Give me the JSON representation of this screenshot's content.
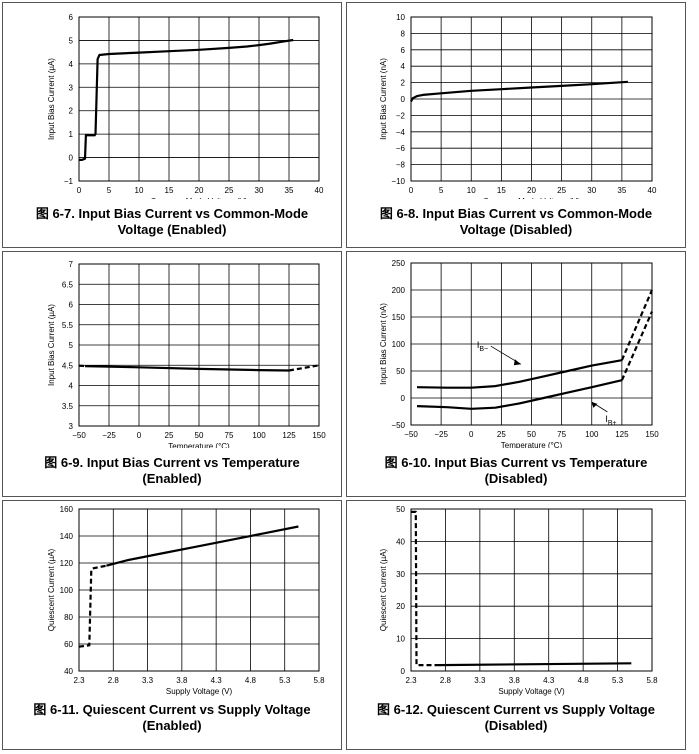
{
  "chart_data": [
    {
      "id": "6-7",
      "type": "line",
      "caption_prefix": "图",
      "caption_number": "6-7.",
      "caption_line1": "Input Bias Current vs Common-Mode",
      "caption_line2": "Voltage (Enabled)",
      "xlabel": "Common-Mode Voltage (V)",
      "ylabel": "Input Bias Current (µA)",
      "xlim": [
        0,
        40
      ],
      "ylim": [
        -1,
        6
      ],
      "x_ticks": [
        "0",
        "5",
        "10",
        "15",
        "20",
        "25",
        "30",
        "35",
        "40"
      ],
      "y_ticks": [
        "−1",
        "0",
        "1",
        "2",
        "3",
        "4",
        "5",
        "6"
      ],
      "grid": true,
      "series": [
        {
          "style": "solid",
          "x": [
            0,
            0.5,
            1.0,
            1.15,
            2.6,
            2.75,
            3.1,
            3.4,
            5,
            10,
            15,
            20,
            25,
            28,
            30,
            32,
            34,
            35.7
          ],
          "y": [
            -0.1,
            -0.1,
            -0.05,
            0.95,
            0.95,
            1.0,
            4.2,
            4.38,
            4.42,
            4.48,
            4.54,
            4.6,
            4.68,
            4.74,
            4.8,
            4.87,
            4.95,
            5.02
          ]
        }
      ]
    },
    {
      "id": "6-8",
      "type": "line",
      "caption_prefix": "图",
      "caption_number": "6-8.",
      "caption_line1": "Input Bias Current vs Common-Mode",
      "caption_line2": "Voltage (Disabled)",
      "xlabel": "Common-Mode Voltage (V)",
      "ylabel": "Input Bias Current (nA)",
      "xlim": [
        0,
        40
      ],
      "ylim": [
        -10,
        10
      ],
      "x_ticks": [
        "0",
        "5",
        "10",
        "15",
        "20",
        "25",
        "30",
        "35",
        "40"
      ],
      "y_ticks": [
        "−10",
        "−8",
        "−6",
        "−4",
        "−2",
        "0",
        "2",
        "4",
        "6",
        "8",
        "10"
      ],
      "grid": true,
      "series": [
        {
          "style": "solid",
          "x": [
            0,
            0.3,
            1,
            2,
            5,
            10,
            15,
            20,
            25,
            30,
            36
          ],
          "y": [
            -0.3,
            0.1,
            0.35,
            0.5,
            0.7,
            1.0,
            1.2,
            1.4,
            1.6,
            1.8,
            2.1
          ]
        }
      ]
    },
    {
      "id": "6-9",
      "type": "line",
      "caption_prefix": "图",
      "caption_number": "6-9.",
      "caption_line1": "Input Bias Current vs Temperature",
      "caption_line2": "(Enabled)",
      "xlabel": "Temperature (°C)",
      "ylabel": "Input Bias Current (µA)",
      "xlim": [
        -50,
        150
      ],
      "ylim": [
        3,
        7
      ],
      "x_ticks": [
        "−50",
        "−25",
        "0",
        "25",
        "50",
        "75",
        "100",
        "125",
        "150"
      ],
      "y_ticks": [
        "3",
        "3.5",
        "4",
        "4.5",
        "5",
        "5.5",
        "6",
        "6.5",
        "7"
      ],
      "grid": true,
      "series": [
        {
          "style": "dashed",
          "x": [
            -50,
            -45
          ],
          "y": [
            4.49,
            4.48
          ]
        },
        {
          "style": "solid",
          "x": [
            -45,
            0,
            50,
            100,
            125
          ],
          "y": [
            4.48,
            4.45,
            4.41,
            4.38,
            4.37
          ]
        },
        {
          "style": "dashed",
          "x": [
            125,
            150
          ],
          "y": [
            4.37,
            4.5
          ]
        }
      ]
    },
    {
      "id": "6-10",
      "type": "line",
      "caption_prefix": "图",
      "caption_number": "6-10.",
      "caption_line1": "Input Bias Current vs Temperature",
      "caption_line2": "(Disabled)",
      "xlabel": "Temperature (°C)",
      "ylabel": "Input Bias Current (nA)",
      "xlim": [
        -50,
        150
      ],
      "ylim": [
        -50,
        250
      ],
      "x_ticks": [
        "−50",
        "−25",
        "0",
        "25",
        "50",
        "75",
        "100",
        "125",
        "150"
      ],
      "y_ticks": [
        "−50",
        "0",
        "50",
        "100",
        "150",
        "200",
        "250"
      ],
      "grid": true,
      "series": [
        {
          "name": "I_B−",
          "style": "solid",
          "x": [
            -45,
            -20,
            0,
            20,
            40,
            60,
            80,
            100,
            125
          ],
          "y": [
            20,
            19,
            19,
            22,
            30,
            40,
            50,
            60,
            70
          ]
        },
        {
          "name": "I_B−",
          "style": "dashed",
          "x": [
            125,
            150
          ],
          "y": [
            70,
            200
          ]
        },
        {
          "name": "I_B+",
          "style": "solid",
          "x": [
            -45,
            -20,
            0,
            20,
            40,
            60,
            80,
            100,
            125
          ],
          "y": [
            -15,
            -17,
            -20,
            -18,
            -10,
            0,
            10,
            20,
            33
          ]
        },
        {
          "name": "I_B+",
          "style": "dashed",
          "x": [
            125,
            150
          ],
          "y": [
            33,
            160
          ]
        }
      ],
      "annotations": [
        {
          "base": "I",
          "sub": "B−",
          "data_x": 8,
          "data_y": 70
        },
        {
          "base": "I",
          "sub": "B+",
          "data_x": 108,
          "data_y": -22
        }
      ]
    },
    {
      "id": "6-11",
      "type": "line",
      "caption_prefix": "图",
      "caption_number": "6-11.",
      "caption_line1": "Quiescent Current vs Supply Voltage",
      "caption_line2": "(Enabled)",
      "xlabel": "Supply Voltage (V)",
      "ylabel": "Quiescent Current (µA)",
      "xlim": [
        2.3,
        5.8
      ],
      "ylim": [
        40,
        160
      ],
      "x_ticks": [
        "2.3",
        "2.8",
        "3.3",
        "3.8",
        "4.3",
        "4.8",
        "5.3",
        "5.8"
      ],
      "y_ticks": [
        "40",
        "60",
        "80",
        "100",
        "120",
        "140",
        "160"
      ],
      "grid": true,
      "series": [
        {
          "style": "dashed",
          "x": [
            2.3,
            2.45,
            2.48,
            2.5,
            2.7
          ],
          "y": [
            58,
            59,
            115,
            116,
            118
          ]
        },
        {
          "style": "solid",
          "x": [
            2.7,
            3.0,
            3.5,
            4.0,
            4.5,
            5.0,
            5.5
          ],
          "y": [
            118,
            122,
            127,
            132,
            137,
            142,
            147
          ]
        }
      ]
    },
    {
      "id": "6-12",
      "type": "line",
      "caption_prefix": "图",
      "caption_number": "6-12.",
      "caption_line1": "Quiescent Current vs Supply Voltage",
      "caption_line2": "(Disabled)",
      "xlabel": "Supply Voltage (V)",
      "ylabel": "Quiescent Current (µA)",
      "xlim": [
        2.3,
        5.8
      ],
      "ylim": [
        0,
        55
      ],
      "x_ticks": [
        "2.3",
        "2.8",
        "3.3",
        "3.8",
        "4.3",
        "4.8",
        "5.3",
        "5.8"
      ],
      "y_ticks": [
        "0",
        "10",
        "20",
        "30",
        "40",
        "50"
      ],
      "grid": true,
      "series": [
        {
          "style": "dashed",
          "x": [
            2.3,
            2.37,
            2.38,
            2.7
          ],
          "y": [
            54,
            54,
            2,
            2
          ]
        },
        {
          "style": "solid",
          "x": [
            2.7,
            5.5
          ],
          "y": [
            2,
            2.6
          ]
        }
      ]
    }
  ]
}
